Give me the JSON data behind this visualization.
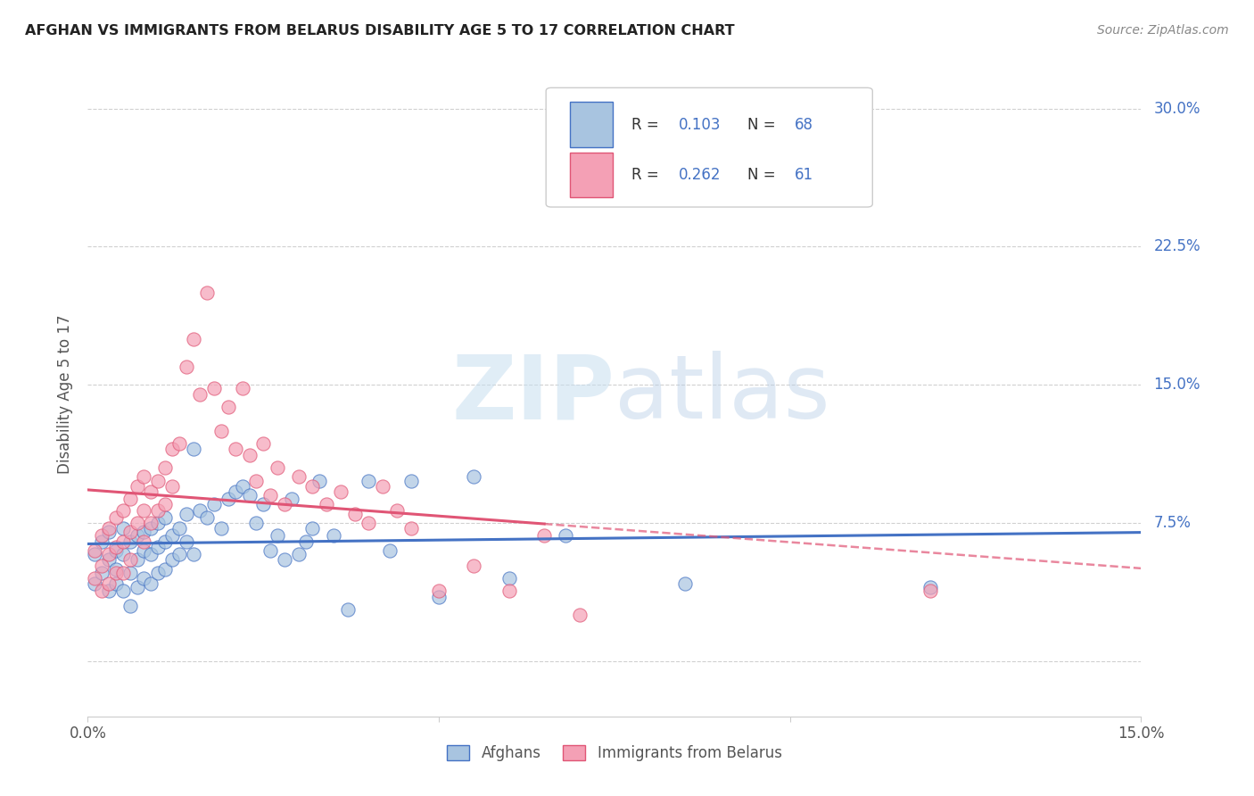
{
  "title": "AFGHAN VS IMMIGRANTS FROM BELARUS DISABILITY AGE 5 TO 17 CORRELATION CHART",
  "source": "Source: ZipAtlas.com",
  "ylabel": "Disability Age 5 to 17",
  "ytick_labels": [
    "",
    "7.5%",
    "15.0%",
    "22.5%",
    "30.0%"
  ],
  "ytick_values": [
    0,
    0.075,
    0.15,
    0.225,
    0.3
  ],
  "xlim": [
    0.0,
    0.15
  ],
  "ylim": [
    -0.03,
    0.32
  ],
  "color_afghan": "#a8c4e0",
  "color_afghan_line": "#4472c4",
  "color_belarus": "#f4a0b5",
  "color_belarus_line": "#e05575",
  "color_ytick": "#4472c4",
  "watermark_zip": "ZIP",
  "watermark_atlas": "atlas",
  "legend_label1": "Afghans",
  "legend_label2": "Immigrants from Belarus",
  "afghan_x": [
    0.001,
    0.001,
    0.002,
    0.002,
    0.003,
    0.003,
    0.003,
    0.004,
    0.004,
    0.004,
    0.005,
    0.005,
    0.005,
    0.006,
    0.006,
    0.006,
    0.007,
    0.007,
    0.007,
    0.008,
    0.008,
    0.008,
    0.009,
    0.009,
    0.009,
    0.01,
    0.01,
    0.01,
    0.011,
    0.011,
    0.011,
    0.012,
    0.012,
    0.013,
    0.013,
    0.014,
    0.014,
    0.015,
    0.015,
    0.016,
    0.017,
    0.018,
    0.019,
    0.02,
    0.021,
    0.022,
    0.023,
    0.024,
    0.025,
    0.026,
    0.027,
    0.028,
    0.029,
    0.03,
    0.031,
    0.032,
    0.033,
    0.035,
    0.037,
    0.04,
    0.043,
    0.046,
    0.05,
    0.055,
    0.06,
    0.068,
    0.085,
    0.12
  ],
  "afghan_y": [
    0.058,
    0.042,
    0.065,
    0.048,
    0.07,
    0.055,
    0.038,
    0.06,
    0.05,
    0.042,
    0.072,
    0.058,
    0.038,
    0.065,
    0.048,
    0.03,
    0.068,
    0.055,
    0.04,
    0.07,
    0.06,
    0.045,
    0.072,
    0.058,
    0.042,
    0.075,
    0.062,
    0.048,
    0.078,
    0.065,
    0.05,
    0.068,
    0.055,
    0.072,
    0.058,
    0.08,
    0.065,
    0.115,
    0.058,
    0.082,
    0.078,
    0.085,
    0.072,
    0.088,
    0.092,
    0.095,
    0.09,
    0.075,
    0.085,
    0.06,
    0.068,
    0.055,
    0.088,
    0.058,
    0.065,
    0.072,
    0.098,
    0.068,
    0.028,
    0.098,
    0.06,
    0.098,
    0.035,
    0.1,
    0.045,
    0.068,
    0.042,
    0.04
  ],
  "belarus_x": [
    0.001,
    0.001,
    0.002,
    0.002,
    0.002,
    0.003,
    0.003,
    0.003,
    0.004,
    0.004,
    0.004,
    0.005,
    0.005,
    0.005,
    0.006,
    0.006,
    0.006,
    0.007,
    0.007,
    0.008,
    0.008,
    0.008,
    0.009,
    0.009,
    0.01,
    0.01,
    0.011,
    0.011,
    0.012,
    0.012,
    0.013,
    0.014,
    0.015,
    0.016,
    0.017,
    0.018,
    0.019,
    0.02,
    0.021,
    0.022,
    0.023,
    0.024,
    0.025,
    0.026,
    0.027,
    0.028,
    0.03,
    0.032,
    0.034,
    0.036,
    0.038,
    0.04,
    0.042,
    0.044,
    0.046,
    0.05,
    0.055,
    0.06,
    0.065,
    0.07,
    0.12
  ],
  "belarus_y": [
    0.06,
    0.045,
    0.068,
    0.052,
    0.038,
    0.072,
    0.058,
    0.042,
    0.078,
    0.062,
    0.048,
    0.082,
    0.065,
    0.048,
    0.088,
    0.07,
    0.055,
    0.095,
    0.075,
    0.1,
    0.082,
    0.065,
    0.092,
    0.075,
    0.098,
    0.082,
    0.105,
    0.085,
    0.115,
    0.095,
    0.118,
    0.16,
    0.175,
    0.145,
    0.2,
    0.148,
    0.125,
    0.138,
    0.115,
    0.148,
    0.112,
    0.098,
    0.118,
    0.09,
    0.105,
    0.085,
    0.1,
    0.095,
    0.085,
    0.092,
    0.08,
    0.075,
    0.095,
    0.082,
    0.072,
    0.038,
    0.052,
    0.038,
    0.068,
    0.025,
    0.038
  ]
}
